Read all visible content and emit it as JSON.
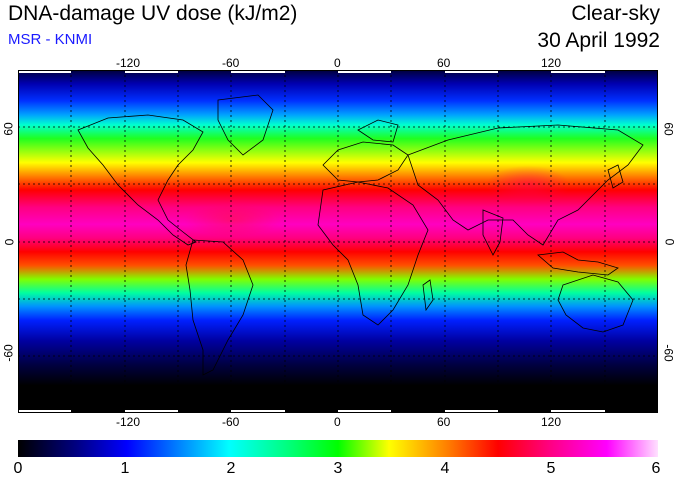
{
  "header": {
    "title": "DNA-damage UV dose (kJ/m2)",
    "subtitle": "MSR - KNMI",
    "condition": "Clear-sky",
    "date": "30 April 1992"
  },
  "map": {
    "projection": "equirectangular",
    "graticule": "dotted",
    "lon_ticks": [
      "-120",
      "-60",
      "0",
      "60",
      "120"
    ],
    "lat_ticks": [
      "60",
      "0",
      "-60"
    ],
    "colors": {
      "low": "#000000",
      "high": "#ffe0ff",
      "subtitle": "#1a1aff"
    }
  },
  "colorbar": {
    "labels": [
      "0",
      "1",
      "2",
      "3",
      "4",
      "5",
      "6"
    ],
    "min": 0,
    "max": 6
  }
}
